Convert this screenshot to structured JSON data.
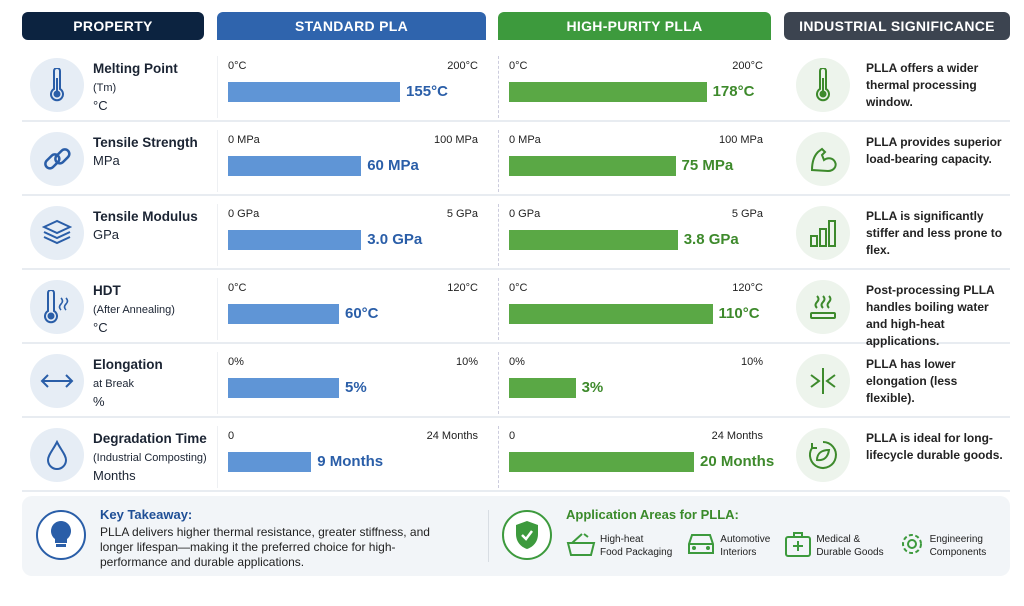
{
  "headers": [
    "PROPERTY",
    "STANDARD PLA",
    "HIGH-PURITY PLLA",
    "INDUSTRIAL SIGNIFICANCE"
  ],
  "colors": {
    "property": "#0c2340",
    "standard": "#2f64ad",
    "plla": "#3d9a3d",
    "significance": "#3c4450",
    "standard_bar": "#5f95d6",
    "plla_bar": "#5aa845"
  },
  "rows": [
    {
      "icon": "thermometer-icon",
      "name": "Melting Point",
      "sub": "(Tm)",
      "unit": "°C",
      "min_label": "0°C",
      "max_label": "200°C",
      "max": 200,
      "std": 155,
      "std_label": "155°C",
      "plla": 178,
      "plla_label": "178°C",
      "sig_icon": "thermometer-icon",
      "significance": "PLLA offers a wider thermal processing window."
    },
    {
      "icon": "chain-link-icon",
      "name": "Tensile Strength",
      "sub": "",
      "unit": "MPa",
      "min_label": "0 MPa",
      "max_label": "100 MPa",
      "max": 100,
      "std": 60,
      "std_label": "60 MPa",
      "plla": 75,
      "plla_label": "75 MPa",
      "sig_icon": "flexed-arm-icon",
      "significance": "PLLA provides superior load-bearing capacity."
    },
    {
      "icon": "layers-icon",
      "name": "Tensile Modulus",
      "sub": "",
      "unit": "GPa",
      "min_label": "0 GPa",
      "max_label": "5 GPa",
      "max": 5,
      "std": 3.0,
      "std_label": "3.0 GPa",
      "plla": 3.8,
      "plla_label": "3.8 GPa",
      "sig_icon": "bar-chart-icon",
      "significance": "PLLA is significantly stiffer and less prone to flex."
    },
    {
      "icon": "heat-thermometer-icon",
      "name": "HDT",
      "sub": "(After Annealing)",
      "unit": "°C",
      "min_label": "0°C",
      "max_label": "120°C",
      "max": 120,
      "std": 60,
      "std_label": "60°C",
      "plla": 110,
      "plla_label": "110°C",
      "sig_icon": "heat-waves-icon",
      "significance": "Post-processing PLLA handles boiling water and high-heat applications."
    },
    {
      "icon": "double-arrow-icon",
      "name": "Elongation",
      "sub": "at Break",
      "unit": "%",
      "min_label": "0%",
      "max_label": "10%",
      "max": 10,
      "std": 5,
      "std_label": "5%",
      "plla": 3,
      "plla_label": "3%",
      "sig_icon": "compress-arrows-icon",
      "significance": "PLLA has lower elongation (less flexible)."
    },
    {
      "icon": "droplet-icon",
      "name": "Degradation Time",
      "sub": "(Industrial Composting)",
      "unit": "Months",
      "min_label": "0",
      "max_label": "24 Months",
      "max": 24,
      "std": 9,
      "std_label": "9 Months",
      "plla": 20,
      "plla_label": "20 Months",
      "sig_icon": "recycle-leaf-icon",
      "significance": "PLLA is ideal for long-lifecycle durable goods."
    }
  ],
  "takeaway": {
    "title": "Key Takeaway:",
    "text": "PLLA delivers higher thermal resistance, greater stiffness, and longer lifespan—making it the preferred choice for high-performance and durable applications."
  },
  "applications": {
    "title": "Application Areas for PLLA:",
    "items": [
      {
        "icon": "food-bowl-icon",
        "label": "High-heat\nFood Packaging"
      },
      {
        "icon": "car-icon",
        "label": "Automotive\nInteriors"
      },
      {
        "icon": "medical-kit-icon",
        "label": "Medical &\nDurable Goods"
      },
      {
        "icon": "gear-icon",
        "label": "Engineering\nComponents"
      }
    ]
  },
  "chart_data": {
    "type": "bar",
    "categories": [
      "Melting Point (Tm) °C",
      "Tensile Strength MPa",
      "Tensile Modulus GPa",
      "HDT (After Annealing) °C",
      "Elongation at Break %",
      "Degradation Time (Industrial Composting) Months"
    ],
    "series": [
      {
        "name": "STANDARD PLA",
        "values": [
          155,
          60,
          3.0,
          60,
          5,
          9
        ]
      },
      {
        "name": "HIGH-PURITY PLLA",
        "values": [
          178,
          75,
          3.8,
          110,
          3,
          20
        ]
      }
    ],
    "axis_ranges": [
      [
        0,
        200
      ],
      [
        0,
        100
      ],
      [
        0,
        5
      ],
      [
        0,
        120
      ],
      [
        0,
        10
      ],
      [
        0,
        24
      ]
    ],
    "orientation": "horizontal",
    "grid": false
  }
}
